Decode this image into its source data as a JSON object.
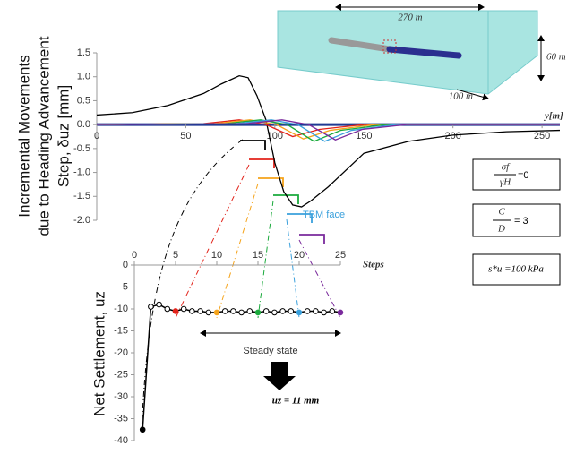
{
  "chart_data": [
    {
      "type": "line",
      "xlim": [
        0,
        260
      ],
      "ylim": [
        -2,
        1.5
      ],
      "xticks": [
        0,
        50,
        100,
        150,
        200,
        250
      ],
      "yticks": [
        1.5,
        {
          "value": 1,
          "label": "1.0"
        },
        0.5,
        {
          "value": 0,
          "label": "0.0"
        },
        -0.5,
        {
          "value": -1,
          "label": "-1.0"
        },
        -1.5,
        {
          "value": -2,
          "label": "-2.0"
        }
      ],
      "x_label": "y[m]",
      "y_label": [
        "Incremental Movements",
        "due to Heading Advancement",
        "Step, δuz [mm]"
      ],
      "annotation": "TBM face",
      "series": [
        {
          "color": "#000000",
          "x": [
            0,
            20,
            40,
            60,
            70,
            80,
            85,
            90,
            95,
            100,
            105,
            110,
            115,
            120,
            130,
            150,
            175,
            200,
            230,
            260
          ],
          "values": [
            0.2,
            0.25,
            0.4,
            0.65,
            0.85,
            1.02,
            0.98,
            0.6,
            0.1,
            -0.8,
            -1.4,
            -1.68,
            -1.72,
            -1.6,
            -1.3,
            -0.6,
            -0.35,
            -0.22,
            -0.15,
            -0.12
          ]
        },
        {
          "color": "#e2231a",
          "x": [
            0,
            60,
            80,
            95,
            110,
            125,
            150,
            260
          ],
          "values": [
            0,
            0.02,
            0.1,
            0,
            -0.25,
            -0.1,
            0,
            0
          ]
        },
        {
          "color": "#f5a31a",
          "x": [
            0,
            66,
            86,
            101,
            116,
            131,
            156,
            260
          ],
          "values": [
            0,
            0.02,
            0.1,
            0,
            -0.3,
            -0.12,
            0,
            0
          ]
        },
        {
          "color": "#1aaa3c",
          "x": [
            0,
            72,
            92,
            107,
            122,
            137,
            162,
            260
          ],
          "values": [
            0,
            0.02,
            0.1,
            0,
            -0.35,
            -0.12,
            0,
            0
          ]
        },
        {
          "color": "#3aa0dc",
          "x": [
            0,
            78,
            98,
            113,
            128,
            143,
            168,
            260
          ],
          "values": [
            0,
            0.02,
            0.1,
            0,
            -0.35,
            -0.12,
            0,
            0
          ]
        },
        {
          "color": "#7a2a9c",
          "x": [
            0,
            84,
            104,
            119,
            134,
            149,
            174,
            260
          ],
          "values": [
            0,
            0.02,
            0.1,
            0,
            -0.32,
            -0.1,
            0,
            0
          ]
        }
      ]
    },
    {
      "type": "line",
      "xlim": [
        0,
        25
      ],
      "ylim": [
        -40,
        0
      ],
      "xticks": [
        0,
        5,
        10,
        15,
        20,
        25
      ],
      "yticks": [
        0,
        -5,
        -10,
        -15,
        -20,
        -25,
        -30,
        -35,
        -40
      ],
      "x_label": "Steps",
      "y_label": "Net Settlement, uz",
      "annotation": "Steady state",
      "result": "uz = 11 mm",
      "series": [
        {
          "color": "#000000",
          "x": [
            1,
            2,
            3,
            4,
            5,
            6,
            7,
            8,
            9,
            10,
            11,
            12,
            13,
            14,
            15,
            16,
            17,
            18,
            19,
            20,
            21,
            22,
            23,
            24,
            25
          ],
          "values": [
            -37.5,
            -9.5,
            -9,
            -10,
            -10.5,
            -10,
            -10.5,
            -10.5,
            -10.8,
            -10.8,
            -10.5,
            -10.5,
            -10.8,
            -10.5,
            -10.8,
            -10.5,
            -10.8,
            -10.5,
            -10.5,
            -10.8,
            -10.5,
            -10.5,
            -10.8,
            -10.5,
            -10.8
          ],
          "marker_colors": [
            "#000000",
            "#ffffff",
            "#ffffff",
            "#ffffff",
            "#e2231a",
            "#ffffff",
            "#ffffff",
            "#ffffff",
            "#ffffff",
            "#f5a31a",
            "#ffffff",
            "#ffffff",
            "#ffffff",
            "#ffffff",
            "#1aaa3c",
            "#ffffff",
            "#ffffff",
            "#ffffff",
            "#ffffff",
            "#3aa0dc",
            "#ffffff",
            "#ffffff",
            "#ffffff",
            "#ffffff",
            "#7a2a9c"
          ]
        }
      ]
    }
  ],
  "model": {
    "length": "270 m",
    "height": "60 m",
    "width": "100 m"
  },
  "parameters": [
    {
      "numerator": "σf",
      "denominator": "γH",
      "rhs": "=0"
    },
    {
      "numerator": "C",
      "denominator": "D",
      "rhs": "= 3"
    },
    {
      "text": "s*u =100 kPa"
    }
  ]
}
